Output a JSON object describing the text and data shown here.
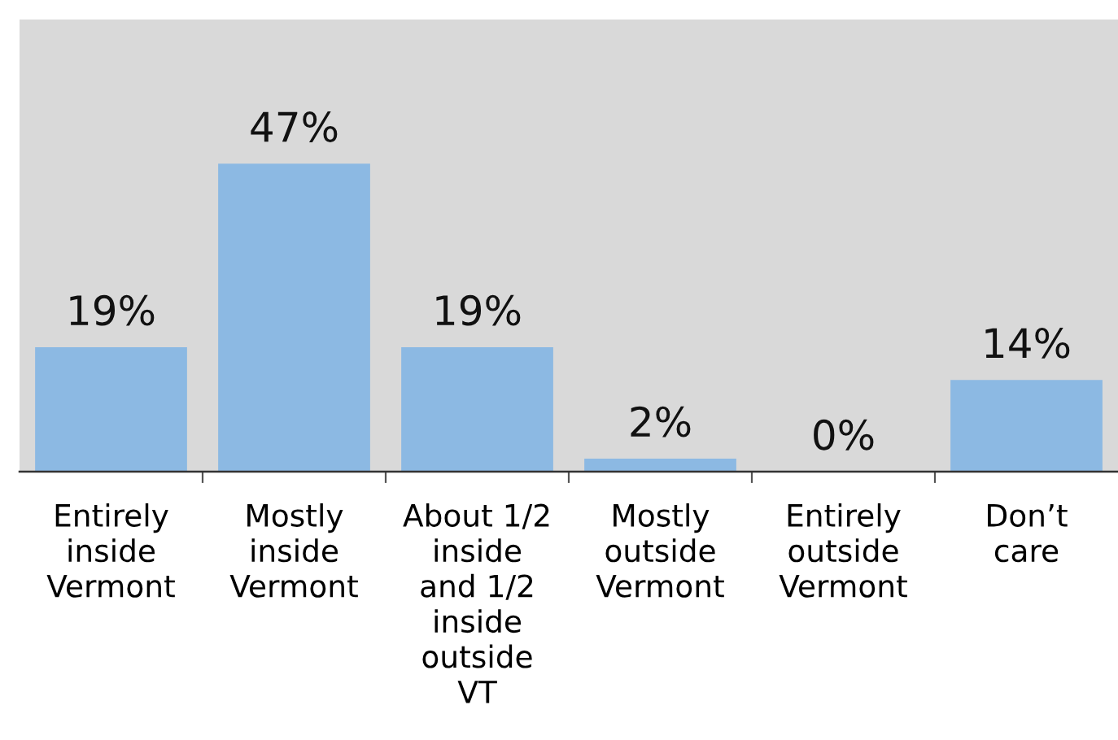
{
  "chart_data": {
    "type": "bar",
    "categories": [
      "Entirely\ninside\nVermont",
      "Mostly\ninside\nVermont",
      "About 1/2\ninside\nand 1/2\ninside\noutside\nVT",
      "Mostly\noutside\nVermont",
      "Entirely\noutside\nVermont",
      "Don’t\ncare"
    ],
    "values": [
      19,
      47,
      19,
      2,
      0,
      14
    ],
    "value_labels": [
      "19%",
      "47%",
      "19%",
      "2%",
      "0%",
      "14%"
    ],
    "color": "#8cb9e3",
    "ylim": [
      0,
      69
    ],
    "tick_labels": "x"
  }
}
